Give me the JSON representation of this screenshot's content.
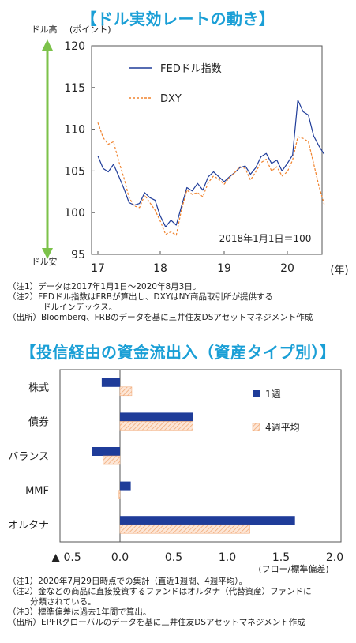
{
  "titles": {
    "chart1": "【ドル実効レートの動き】",
    "chart2": "【投信経由の資金流出入（資産タイプ別）】"
  },
  "chart_data": [
    {
      "type": "line",
      "title": "【ドル実効レートの動き】",
      "ylabel": "(ポイント)",
      "y_high_label": "ドル高",
      "y_low_label": "ドル安",
      "x_unit_label": "(年)",
      "ylim": [
        95,
        120
      ],
      "yticks": [
        95,
        100,
        105,
        110,
        115,
        120
      ],
      "xticks": [
        "17",
        "18",
        "19",
        "20"
      ],
      "annotation": "2018年1月1日＝100",
      "legend_position": "top-left",
      "colors": {
        "fed": "#1f3c99",
        "dxy": "#f0832e",
        "arrow": "#7cc24a"
      },
      "series": [
        {
          "name": "FEDドル指数",
          "x": [
            "2017-01",
            "2017-02",
            "2017-03",
            "2017-04",
            "2017-05",
            "2017-06",
            "2017-07",
            "2017-08",
            "2017-09",
            "2017-10",
            "2017-11",
            "2017-12",
            "2018-01",
            "2018-02",
            "2018-03",
            "2018-04",
            "2018-05",
            "2018-06",
            "2018-07",
            "2018-08",
            "2018-09",
            "2018-10",
            "2018-11",
            "2018-12",
            "2019-01",
            "2019-02",
            "2019-03",
            "2019-04",
            "2019-05",
            "2019-06",
            "2019-07",
            "2019-08",
            "2019-09",
            "2019-10",
            "2019-11",
            "2019-12",
            "2020-01",
            "2020-02",
            "2020-03",
            "2020-04",
            "2020-05",
            "2020-06",
            "2020-07",
            "2020-08"
          ],
          "y": [
            106.8,
            105.3,
            104.9,
            105.8,
            104.4,
            102.9,
            101.2,
            100.9,
            101.1,
            102.4,
            101.8,
            101.5,
            99.6,
            98.3,
            99.1,
            98.5,
            100.8,
            103.0,
            102.6,
            103.5,
            102.7,
            104.3,
            104.9,
            104.3,
            103.7,
            104.3,
            104.8,
            105.4,
            105.6,
            104.6,
            105.4,
            106.7,
            107.1,
            105.9,
            106.3,
            105.0,
            105.9,
            106.9,
            113.5,
            112.1,
            111.7,
            109.2,
            108.0,
            107.0
          ]
        },
        {
          "name": "DXY",
          "x": [
            "2017-01",
            "2017-02",
            "2017-03",
            "2017-04",
            "2017-05",
            "2017-06",
            "2017-07",
            "2017-08",
            "2017-09",
            "2017-10",
            "2017-11",
            "2017-12",
            "2018-01",
            "2018-02",
            "2018-03",
            "2018-04",
            "2018-05",
            "2018-06",
            "2018-07",
            "2018-08",
            "2018-09",
            "2018-10",
            "2018-11",
            "2018-12",
            "2019-01",
            "2019-02",
            "2019-03",
            "2019-04",
            "2019-05",
            "2019-06",
            "2019-07",
            "2019-08",
            "2019-09",
            "2019-10",
            "2019-11",
            "2019-12",
            "2020-01",
            "2020-02",
            "2020-03",
            "2020-04",
            "2020-05",
            "2020-06",
            "2020-07",
            "2020-08"
          ],
          "y": [
            110.8,
            109.0,
            108.2,
            108.5,
            106.2,
            104.2,
            101.8,
            100.8,
            100.6,
            102.1,
            101.2,
            100.3,
            99.0,
            97.4,
            97.7,
            97.3,
            100.4,
            102.7,
            102.2,
            102.4,
            101.9,
            103.6,
            104.4,
            104.0,
            103.4,
            104.2,
            104.8,
            105.5,
            105.3,
            103.9,
            104.9,
            106.0,
            106.4,
            105.0,
            105.5,
            104.4,
            104.9,
            106.3,
            109.1,
            108.9,
            108.5,
            105.9,
            103.2,
            101.0
          ]
        }
      ],
      "notes": [
        "（注1）データは2017年1月1日～2020年8月3日。",
        "（注2）FEDドル指数はFRBが算出し、DXYはNY商品取引所が提供する",
        "ドルインデックス。",
        "（出所）Bloomberg、FRBのデータを基に三井住友DSアセットマネジメント作成"
      ]
    },
    {
      "type": "bar",
      "orientation": "horizontal",
      "title": "【投信経由の資金流出入（資産タイプ別）】",
      "categories": [
        "株式",
        "債券",
        "バランス",
        "MMF",
        "オルタナ"
      ],
      "xlabel": "(フロー/標準偏差)",
      "xlim": [
        -0.5,
        2.0
      ],
      "xtick_labels": [
        "▲ 0.5",
        "0.0",
        "0.5",
        "1.0",
        "1.5",
        "2.0"
      ],
      "xtick_values": [
        -0.5,
        0.0,
        0.5,
        1.0,
        1.5,
        2.0
      ],
      "legend_position": "top-right",
      "series": [
        {
          "name": "1週",
          "color": "#1f3c99",
          "values": [
            -0.17,
            0.68,
            -0.26,
            0.1,
            1.63
          ]
        },
        {
          "name": "4週平均",
          "color": "#f6c7a4",
          "values": [
            0.11,
            0.68,
            -0.16,
            -0.01,
            1.21
          ]
        }
      ],
      "notes": [
        "（注1）2020年7月29日時点での集計（直近1週間、4週平均）。",
        "（注2）金などの商品に直接投資するファンドはオルタナ（代替資産）ファンドに",
        "分類されている。",
        "（注3）標準偏差は過去1年間で算出。",
        "（出所）EPFRグローバルのデータを基に三井住友DSアセットマネジメント作成"
      ]
    }
  ]
}
